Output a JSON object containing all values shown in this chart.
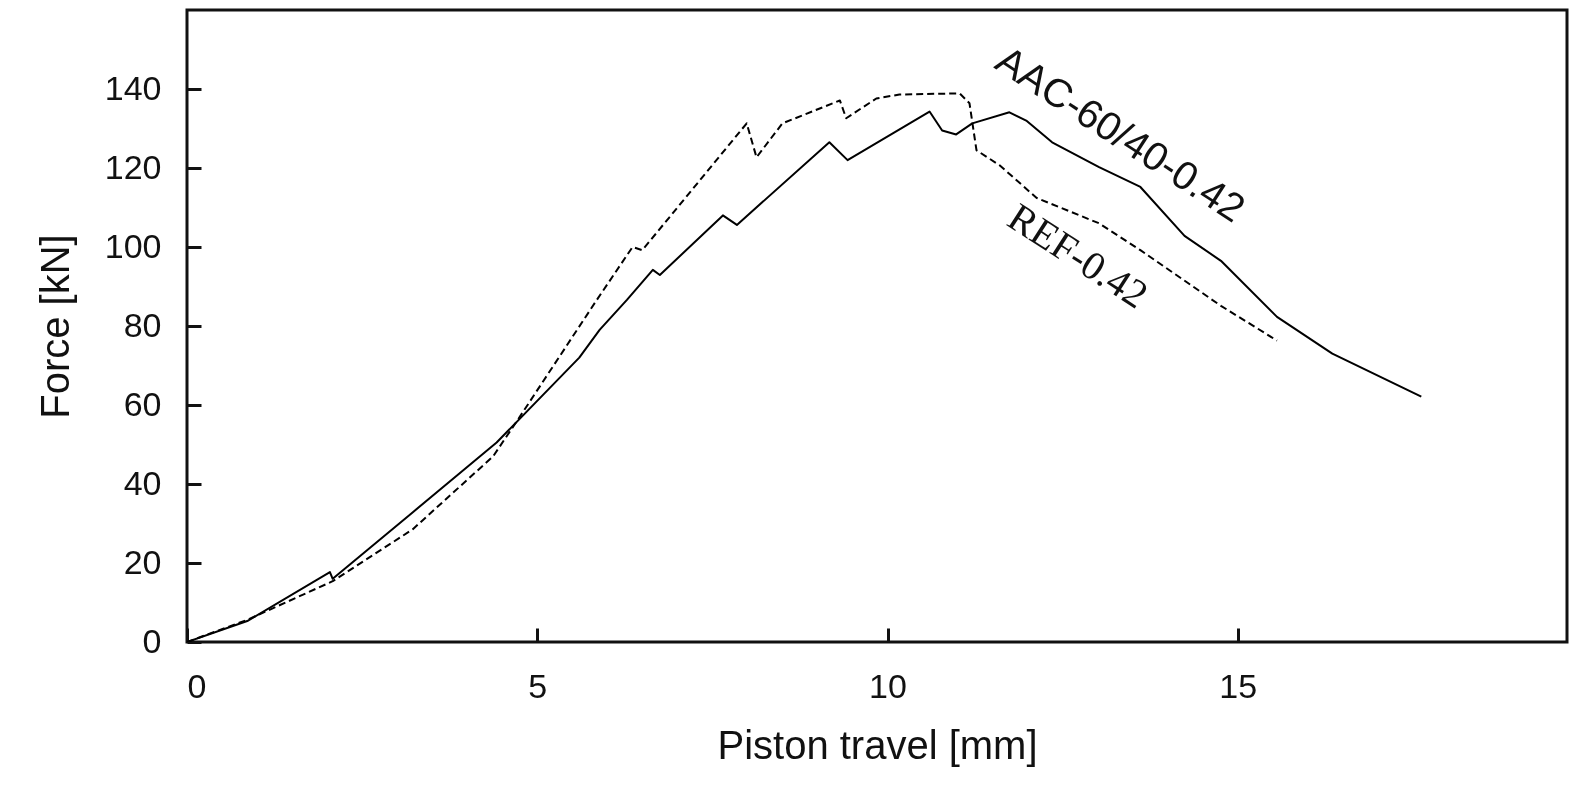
{
  "chart_data": {
    "type": "line",
    "xlabel": "Piston travel [mm]",
    "ylabel": "Force [kN]",
    "xlim": [
      0,
      19.7
    ],
    "xticks": [
      0,
      5,
      10,
      15
    ],
    "ylim": [
      0,
      160
    ],
    "yticks": [
      0,
      20,
      40,
      60,
      80,
      100,
      120,
      140
    ],
    "marker": "none",
    "series": [
      {
        "name": "AAC-60/40-0.42",
        "color": "#000000",
        "line_style": "solid",
        "x": [
          0,
          0.86,
          2.04,
          2.08,
          3.22,
          4.42,
          5.6,
          5.89,
          6.28,
          6.65,
          6.75,
          7.65,
          7.85,
          9.17,
          9.43,
          10.6,
          10.78,
          10.98,
          11.21,
          11.74,
          11.98,
          12.35,
          13.02,
          13.61,
          14.24,
          14.76,
          15.56,
          16.35,
          17.62
        ],
        "values": [
          0,
          5.3,
          17.7,
          16,
          32.8,
          50.5,
          72,
          79,
          86.6,
          94.2,
          92.9,
          108,
          105.6,
          126.5,
          122,
          134.3,
          129.5,
          128.5,
          131.3,
          134.1,
          132,
          126.5,
          120.2,
          115.2,
          102.8,
          96.5,
          82.3,
          73,
          62.1
        ]
      },
      {
        "name": "REF-0.42",
        "color": "#000000",
        "line_style": "dashed",
        "x": [
          0,
          0.86,
          2.08,
          3.22,
          4.37,
          4.75,
          5.85,
          6.36,
          6.5,
          7.99,
          8.13,
          8.5,
          9.32,
          9.41,
          9.84,
          10.17,
          11.03,
          11.17,
          11.27,
          11.6,
          12.13,
          13.02,
          13.61,
          14.76,
          15.56
        ],
        "values": [
          0,
          5.6,
          15.4,
          28.5,
          47,
          57,
          86.6,
          100,
          99.2,
          131.3,
          122.7,
          131.3,
          137.1,
          132.6,
          137.6,
          138.6,
          138.9,
          136.4,
          124.5,
          120.7,
          112.4,
          106,
          99.2,
          85.1,
          76.3
        ]
      }
    ]
  }
}
